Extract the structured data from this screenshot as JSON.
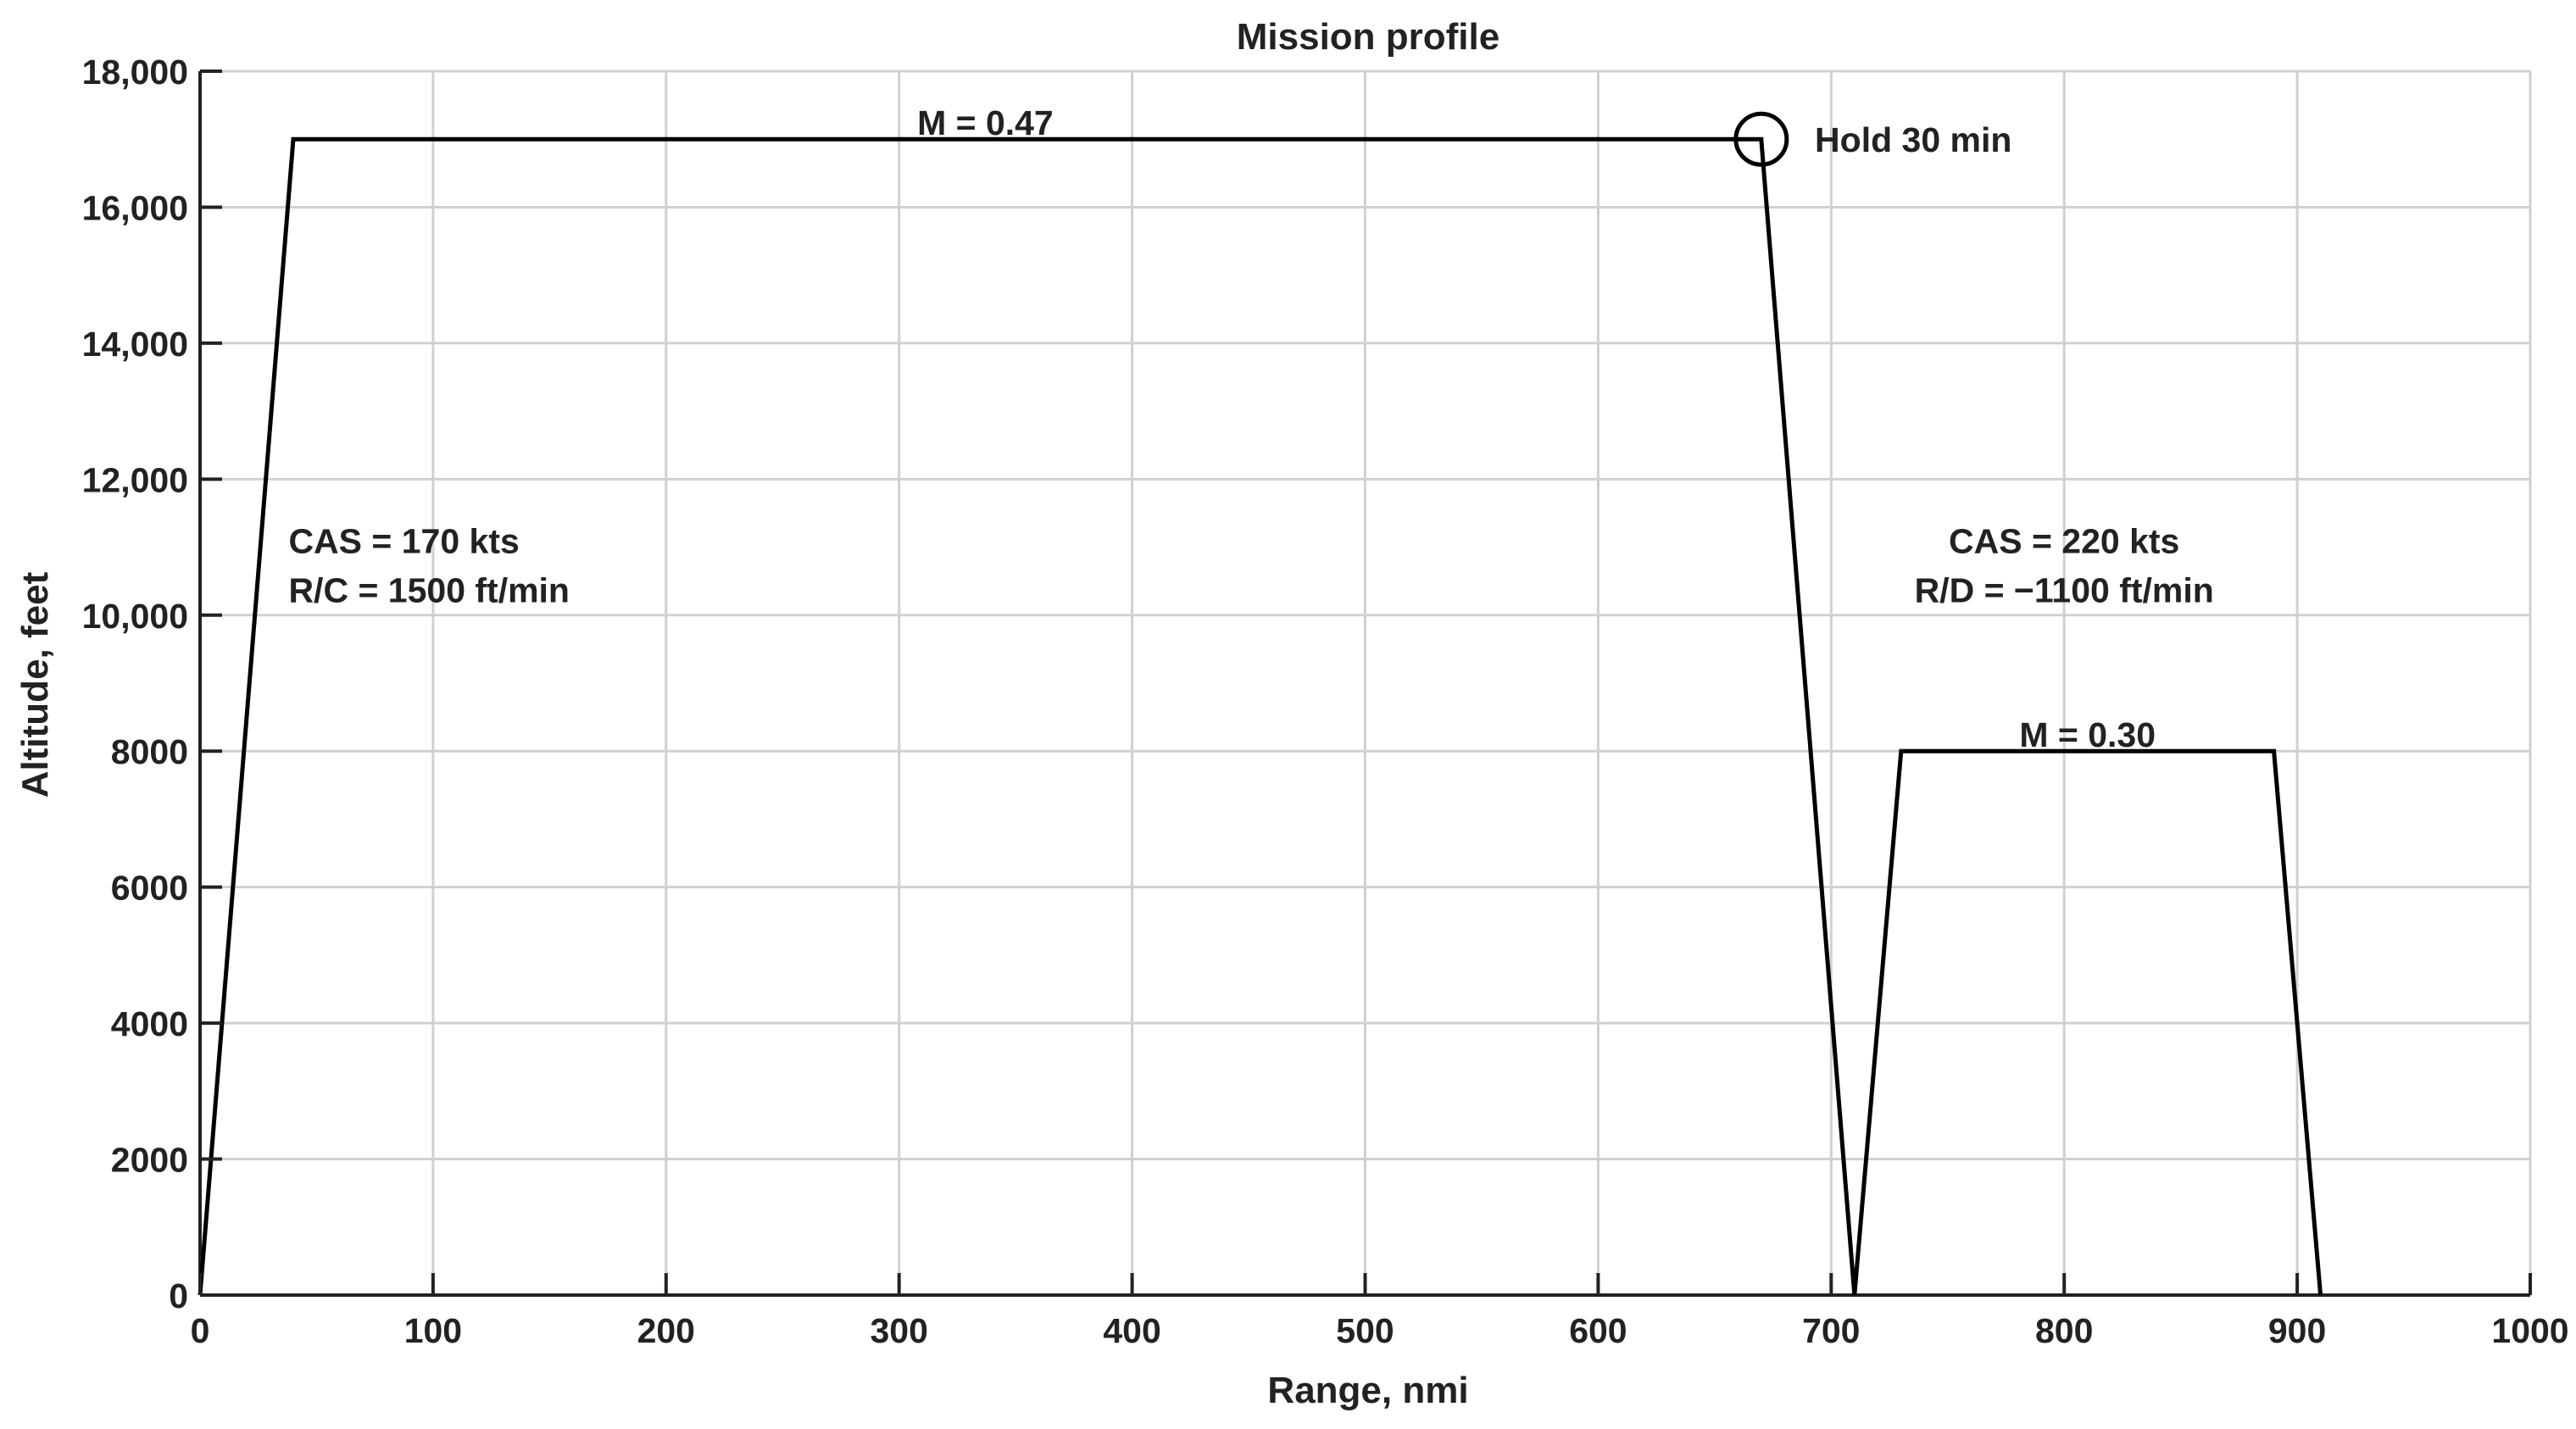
{
  "chart_data": {
    "type": "line",
    "title": "Mission profile",
    "xlabel": "Range, nmi",
    "ylabel": "Altitude, feet",
    "xlim": [
      0,
      1000
    ],
    "ylim": [
      0,
      18000
    ],
    "grid": true,
    "x_ticks": [
      0,
      100,
      200,
      300,
      400,
      500,
      600,
      700,
      800,
      900,
      1000
    ],
    "x_tick_labels": [
      "0",
      "100",
      "200",
      "300",
      "400",
      "500",
      "600",
      "700",
      "800",
      "900",
      "1000"
    ],
    "y_ticks": [
      0,
      2000,
      4000,
      6000,
      8000,
      10000,
      12000,
      14000,
      16000,
      18000
    ],
    "y_tick_labels": [
      "0",
      "2000",
      "4000",
      "6000",
      "8000",
      "10,000",
      "12,000",
      "14,000",
      "16,000",
      "18,000"
    ],
    "series": [
      {
        "x": [
          0,
          40,
          670,
          710,
          730,
          890,
          910
        ],
        "y": [
          0,
          17000,
          17000,
          0,
          8000,
          8000,
          0
        ]
      }
    ],
    "markers": [
      {
        "x": 670,
        "y": 17000,
        "shape": "circle"
      }
    ],
    "annotations": [
      {
        "id": "cruise-mach",
        "text": "M = 0.47",
        "x": 337,
        "y": 17250
      },
      {
        "id": "hold",
        "text": "Hold 30 min",
        "x": 693,
        "y": 17000
      },
      {
        "id": "climb-cas",
        "text": "CAS = 170 kts",
        "x": 38,
        "y": 11100
      },
      {
        "id": "climb-rate",
        "text": "R/C = 1500 ft/min",
        "x": 38,
        "y": 10380
      },
      {
        "id": "descent-cas",
        "text": "CAS = 220 kts",
        "x": 800,
        "y": 11100
      },
      {
        "id": "descent-rate",
        "text": "R/D = −1100 ft/min",
        "x": 800,
        "y": 10380
      },
      {
        "id": "second-cruise-mach",
        "text": "M = 0.30",
        "x": 810,
        "y": 8250
      }
    ],
    "colors": {
      "line": "#000000",
      "grid": "#d0d0d0",
      "axis": "#222222",
      "text": "#222222"
    }
  }
}
